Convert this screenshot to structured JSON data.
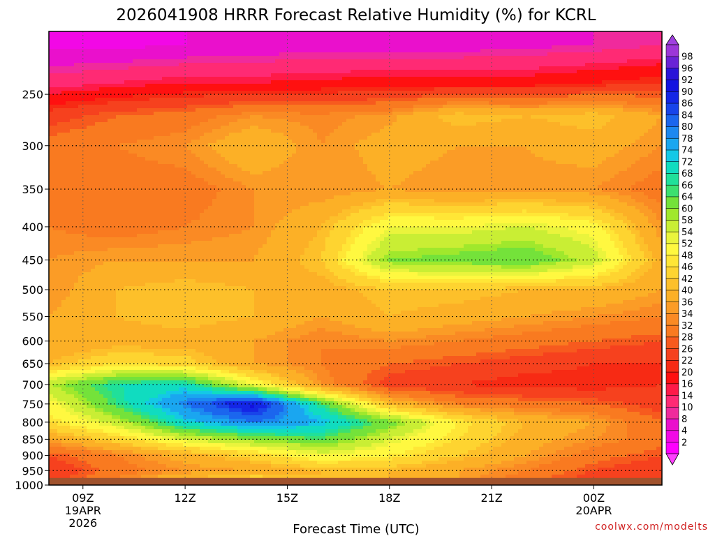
{
  "chart_data": {
    "type": "heatmap",
    "title": "2026041908 HRRR Forecast Relative Humidity (%) for KCRL",
    "xlabel": "Forecast Time (UTC)",
    "ylabel": "",
    "credit": "coolwx.com/modelts",
    "x_ticks": [
      {
        "hour": 9,
        "label": "09Z",
        "label2": "19APR",
        "label3": "2026"
      },
      {
        "hour": 12,
        "label": "12Z",
        "label2": "",
        "label3": ""
      },
      {
        "hour": 15,
        "label": "15Z",
        "label2": "",
        "label3": ""
      },
      {
        "hour": 18,
        "label": "18Z",
        "label2": "",
        "label3": ""
      },
      {
        "hour": 21,
        "label": "21Z",
        "label2": "",
        "label3": ""
      },
      {
        "hour": 24,
        "label": "00Z",
        "label2": "20APR",
        "label3": ""
      }
    ],
    "xlim_hours": [
      8,
      26
    ],
    "y_ticks": [
      250,
      300,
      350,
      400,
      450,
      500,
      550,
      600,
      650,
      700,
      750,
      800,
      850,
      900,
      950,
      1000
    ],
    "ylim_hpa": [
      200,
      1000
    ],
    "y_scale": "log-pressure",
    "surface_hpa": 975,
    "grid": true,
    "colorbar": {
      "labels": [
        "2",
        "4",
        "8",
        "10",
        "14",
        "16",
        "20",
        "22",
        "26",
        "28",
        "32",
        "34",
        "36",
        "40",
        "42",
        "46",
        "48",
        "52",
        "54",
        "58",
        "60",
        "64",
        "66",
        "68",
        "72",
        "74",
        "78",
        "80",
        "84",
        "86",
        "90",
        "92",
        "96",
        "98"
      ],
      "colors": [
        "#ff00ff",
        "#f208e6",
        "#ea10cc",
        "#f02a9c",
        "#ff2a74",
        "#ff1a48",
        "#ff1010",
        "#f72a14",
        "#f6411e",
        "#f75a1e",
        "#f97a20",
        "#fa8a24",
        "#fb9c26",
        "#fcb026",
        "#fdc02a",
        "#fed430",
        "#ffe636",
        "#fff840",
        "#eaf43c",
        "#c9ee34",
        "#a0e82c",
        "#74e23a",
        "#3ce070",
        "#20e09a",
        "#10dcc0",
        "#14c8e6",
        "#1aa6f0",
        "#1c88f0",
        "#1b66ee",
        "#1844ea",
        "#1426e6",
        "#1212e0",
        "#2a14d8",
        "#6a22d6",
        "#9c36d8"
      ],
      "over_color": "#a040e0",
      "under_color": "#ff40ff"
    },
    "rh_grid": {
      "hours": [
        8,
        10,
        12,
        14,
        16,
        18,
        20,
        22,
        24,
        26
      ],
      "levels_hpa": [
        210,
        240,
        270,
        300,
        350,
        400,
        450,
        500,
        550,
        600,
        650,
        700,
        750,
        800,
        850,
        900,
        950,
        975
      ],
      "values": [
        [
          3,
          3,
          4,
          5,
          6,
          6,
          6,
          7,
          8,
          10
        ],
        [
          12,
          14,
          16,
          16,
          17,
          18,
          18,
          18,
          20,
          22
        ],
        [
          24,
          28,
          30,
          34,
          33,
          35,
          42,
          40,
          42,
          36
        ],
        [
          30,
          32,
          34,
          40,
          34,
          38,
          36,
          36,
          38,
          34
        ],
        [
          32,
          30,
          30,
          34,
          34,
          36,
          34,
          35,
          34,
          30
        ],
        [
          32,
          30,
          32,
          34,
          40,
          52,
          52,
          54,
          50,
          34
        ],
        [
          34,
          36,
          36,
          36,
          42,
          60,
          62,
          64,
          56,
          38
        ],
        [
          34,
          40,
          42,
          40,
          38,
          42,
          42,
          40,
          40,
          36
        ],
        [
          36,
          40,
          42,
          40,
          36,
          40,
          38,
          36,
          34,
          32
        ],
        [
          36,
          38,
          38,
          36,
          32,
          34,
          32,
          30,
          28,
          26
        ],
        [
          40,
          46,
          44,
          36,
          32,
          28,
          26,
          24,
          22,
          22
        ],
        [
          58,
          68,
          70,
          52,
          34,
          24,
          22,
          20,
          20,
          22
        ],
        [
          50,
          66,
          80,
          92,
          66,
          40,
          32,
          30,
          28,
          24
        ],
        [
          46,
          56,
          72,
          80,
          74,
          62,
          48,
          40,
          36,
          28
        ],
        [
          36,
          44,
          54,
          60,
          64,
          54,
          46,
          38,
          34,
          30
        ],
        [
          26,
          32,
          38,
          44,
          52,
          48,
          42,
          36,
          30,
          26
        ],
        [
          22,
          30,
          34,
          36,
          40,
          40,
          36,
          32,
          26,
          22
        ],
        [
          24,
          32,
          40,
          44,
          40,
          40,
          36,
          30,
          24,
          22
        ]
      ]
    }
  }
}
